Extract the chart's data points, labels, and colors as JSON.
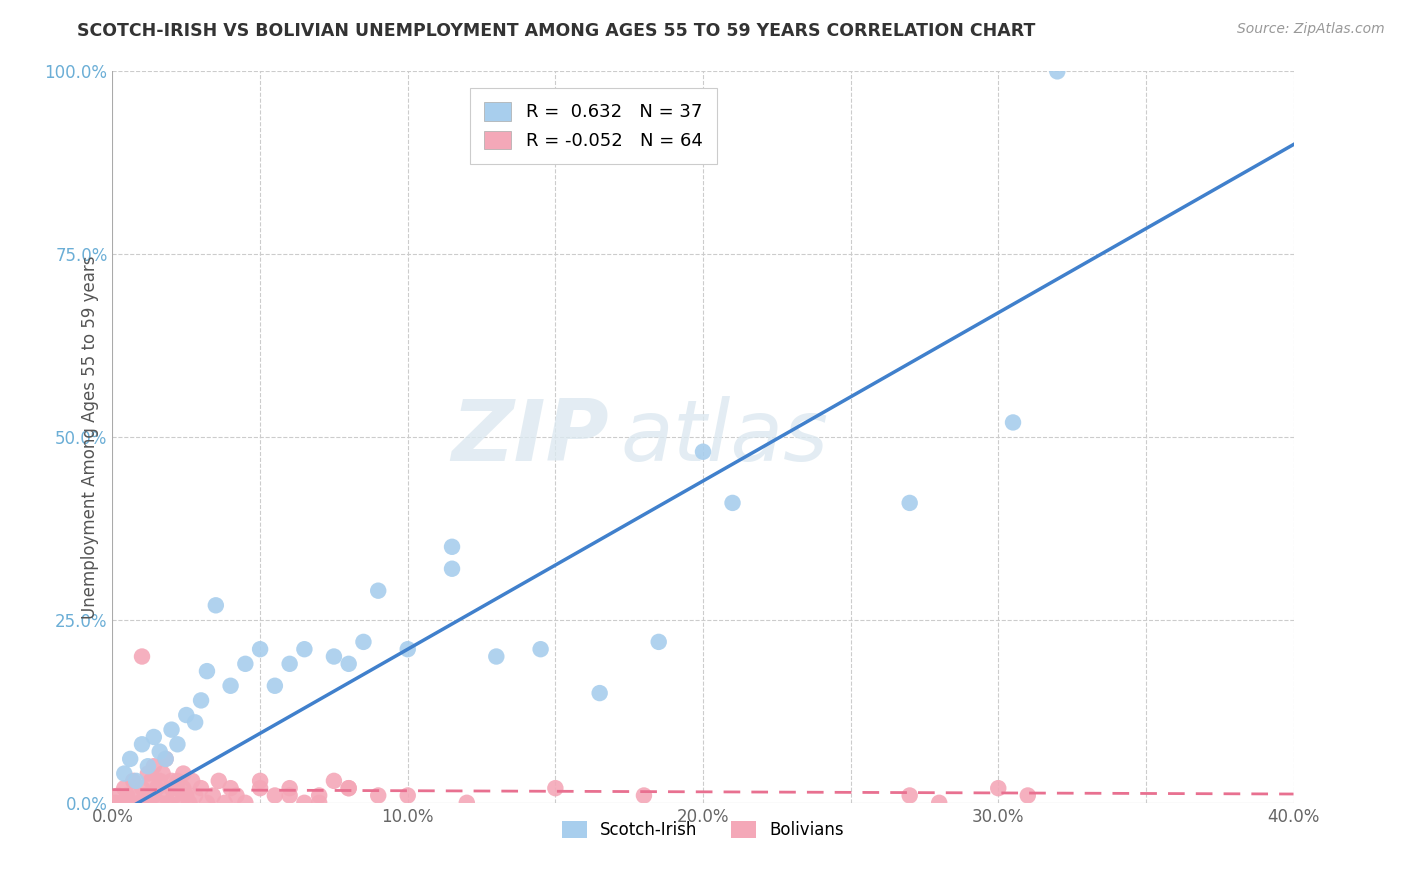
{
  "title": "SCOTCH-IRISH VS BOLIVIAN UNEMPLOYMENT AMONG AGES 55 TO 59 YEARS CORRELATION CHART",
  "source": "Source: ZipAtlas.com",
  "ylabel": "Unemployment Among Ages 55 to 59 years",
  "xlim": [
    0.0,
    0.4
  ],
  "ylim": [
    0.0,
    1.0
  ],
  "xticks": [
    0.0,
    0.1,
    0.2,
    0.3,
    0.4
  ],
  "xticklabels": [
    "0.0%",
    "10.0%",
    "20.0%",
    "30.0%",
    "40.0%"
  ],
  "yticks": [
    0.0,
    0.25,
    0.5,
    0.75,
    1.0
  ],
  "yticklabels": [
    "0.0%",
    "25.0%",
    "50.0%",
    "75.0%",
    "100.0%"
  ],
  "scotch_irish_color": "#A8CEED",
  "bolivian_color": "#F4A8B8",
  "scotch_irish_line_color": "#4080CC",
  "bolivian_line_color": "#E87090",
  "legend_R_scotch": "0.632",
  "legend_N_scotch": "37",
  "legend_R_bolivian": "-0.052",
  "legend_N_bolivian": "64",
  "watermark_zip": "ZIP",
  "watermark_atlas": "atlas",
  "scotch_irish_x": [
    0.004,
    0.006,
    0.008,
    0.01,
    0.012,
    0.014,
    0.016,
    0.018,
    0.02,
    0.022,
    0.025,
    0.028,
    0.03,
    0.032,
    0.035,
    0.04,
    0.045,
    0.05,
    0.055,
    0.06,
    0.065,
    0.075,
    0.08,
    0.085,
    0.09,
    0.1,
    0.115,
    0.13,
    0.145,
    0.165,
    0.185,
    0.2,
    0.21,
    0.27,
    0.305,
    0.32,
    0.115
  ],
  "scotch_irish_y": [
    0.04,
    0.06,
    0.03,
    0.08,
    0.05,
    0.09,
    0.07,
    0.06,
    0.1,
    0.08,
    0.12,
    0.11,
    0.14,
    0.18,
    0.27,
    0.16,
    0.19,
    0.21,
    0.16,
    0.19,
    0.21,
    0.2,
    0.19,
    0.22,
    0.29,
    0.21,
    0.32,
    0.2,
    0.21,
    0.15,
    0.22,
    0.48,
    0.41,
    0.41,
    0.52,
    1.0,
    0.35
  ],
  "bolivian_x": [
    0.001,
    0.002,
    0.003,
    0.004,
    0.005,
    0.006,
    0.007,
    0.008,
    0.009,
    0.01,
    0.011,
    0.012,
    0.013,
    0.014,
    0.015,
    0.016,
    0.017,
    0.018,
    0.019,
    0.02,
    0.021,
    0.022,
    0.023,
    0.024,
    0.025,
    0.026,
    0.027,
    0.028,
    0.03,
    0.032,
    0.034,
    0.036,
    0.038,
    0.04,
    0.042,
    0.045,
    0.05,
    0.055,
    0.06,
    0.065,
    0.07,
    0.075,
    0.08,
    0.09,
    0.01,
    0.012,
    0.014,
    0.016,
    0.018,
    0.02,
    0.022,
    0.024,
    0.05,
    0.06,
    0.07,
    0.08,
    0.1,
    0.12,
    0.15,
    0.18,
    0.27,
    0.28,
    0.3,
    0.31
  ],
  "bolivian_y": [
    0.0,
    0.01,
    0.0,
    0.02,
    0.01,
    0.0,
    0.03,
    0.01,
    0.0,
    0.02,
    0.01,
    0.0,
    0.03,
    0.01,
    0.02,
    0.0,
    0.04,
    0.01,
    0.0,
    0.02,
    0.01,
    0.03,
    0.0,
    0.02,
    0.01,
    0.0,
    0.03,
    0.01,
    0.02,
    0.0,
    0.01,
    0.03,
    0.0,
    0.02,
    0.01,
    0.0,
    0.03,
    0.01,
    0.02,
    0.0,
    0.01,
    0.03,
    0.02,
    0.01,
    0.2,
    0.04,
    0.05,
    0.03,
    0.06,
    0.03,
    0.02,
    0.04,
    0.02,
    0.01,
    0.0,
    0.02,
    0.01,
    0.0,
    0.02,
    0.01,
    0.01,
    0.0,
    0.02,
    0.01
  ],
  "si_trend_x0": 0.0,
  "si_trend_y0": -0.02,
  "si_trend_x1": 0.4,
  "si_trend_y1": 0.9,
  "bv_trend_x0": 0.0,
  "bv_trend_y0": 0.018,
  "bv_trend_x1": 0.4,
  "bv_trend_y1": 0.012
}
